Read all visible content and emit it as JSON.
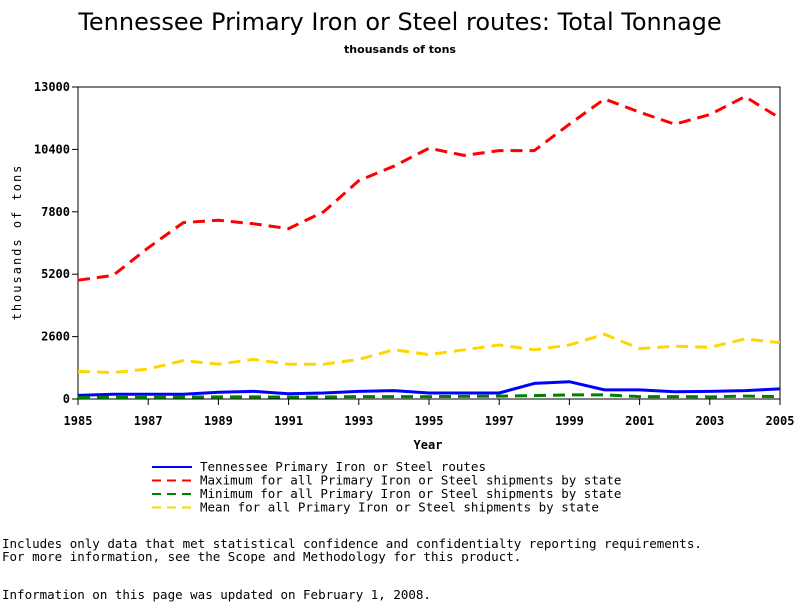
{
  "chart_data": {
    "type": "line",
    "title": "Tennessee Primary Iron or Steel routes: Total Tonnage",
    "subtitle": "thousands of tons",
    "xlabel": "Year",
    "ylabel": "thousands of tons",
    "xlim": [
      1985,
      2005
    ],
    "ylim": [
      0,
      13000
    ],
    "x_ticks": [
      1985,
      1987,
      1989,
      1991,
      1993,
      1995,
      1997,
      1999,
      2001,
      2003,
      2005
    ],
    "y_ticks": [
      0,
      2600,
      5200,
      7800,
      10400,
      13000
    ],
    "grid": false,
    "legend_position": "bottom",
    "x": [
      1985,
      1986,
      1987,
      1988,
      1989,
      1990,
      1991,
      1992,
      1993,
      1994,
      1995,
      1996,
      1997,
      1998,
      1999,
      2000,
      2001,
      2002,
      2003,
      2004,
      2005
    ],
    "series": [
      {
        "name": "Tennessee Primary Iron or Steel routes",
        "color": "#0000ff",
        "dash": "solid",
        "values": [
          150,
          200,
          200,
          200,
          280,
          320,
          220,
          250,
          320,
          350,
          250,
          250,
          250,
          650,
          720,
          380,
          380,
          300,
          320,
          350,
          420
        ]
      },
      {
        "name": "Maximum for all Primary Iron or Steel shipments by state",
        "color": "#ff0000",
        "dash": "dashed",
        "values": [
          4950,
          5150,
          6300,
          7350,
          7450,
          7300,
          7100,
          7800,
          9100,
          9700,
          10450,
          10150,
          10350,
          10350,
          11450,
          12500,
          11950,
          11450,
          11850,
          12600,
          11700
        ]
      },
      {
        "name": "Minimum for all Primary Iron or Steel shipments by state",
        "color": "#008000",
        "dash": "dashed",
        "values": [
          60,
          70,
          70,
          80,
          90,
          90,
          80,
          80,
          100,
          100,
          100,
          110,
          120,
          140,
          170,
          170,
          100,
          100,
          90,
          120,
          100
        ]
      },
      {
        "name": "Mean for all Primary Iron or Steel shipments by state",
        "color": "#ffd700",
        "dash": "dashed",
        "values": [
          1150,
          1100,
          1250,
          1600,
          1450,
          1650,
          1450,
          1450,
          1650,
          2050,
          1850,
          2050,
          2250,
          2050,
          2250,
          2700,
          2100,
          2200,
          2150,
          2500,
          2350
        ]
      }
    ]
  },
  "notes": {
    "line1": "Includes only data that met statistical confidence and confidentialty reporting requirements.",
    "line2": "For more information, see the Scope and Methodology for this product.",
    "line3": "Information on this page was updated on February 1, 2008."
  }
}
